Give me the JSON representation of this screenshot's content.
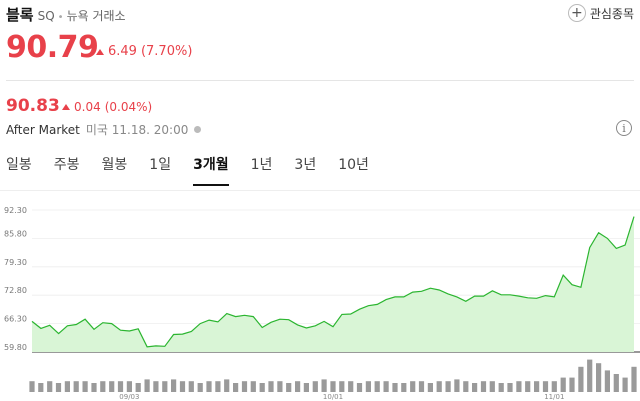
{
  "header": {
    "name": "블록",
    "ticker": "SQ",
    "separator": "•",
    "exchange": "뉴욕 거래소",
    "watch_label": "관심종목"
  },
  "quote": {
    "price": "90.79",
    "change": "6.49",
    "change_pct": "(7.70%)"
  },
  "after_market": {
    "price": "90.83",
    "change": "0.04",
    "change_pct": "(0.04%)",
    "label": "After Market",
    "time": "미국 11.18. 20:00"
  },
  "tabs": [
    {
      "label": "일봉",
      "active": false
    },
    {
      "label": "주봉",
      "active": false
    },
    {
      "label": "월봉",
      "active": false
    },
    {
      "label": "1일",
      "active": false
    },
    {
      "label": "3개월",
      "active": true
    },
    {
      "label": "1년",
      "active": false
    },
    {
      "label": "3년",
      "active": false
    },
    {
      "label": "10년",
      "active": false
    }
  ],
  "colors": {
    "up": "#e8414a",
    "line": "#2bb530",
    "area": "#d9f5d6",
    "volume": "#9a9a9a"
  },
  "chart_data": {
    "type": "area",
    "yticks": [
      "92.30",
      "85.80",
      "79.30",
      "72.80",
      "66.30",
      "59.80"
    ],
    "ylim": [
      59.8,
      92.3
    ],
    "xticks": [
      {
        "label": "09/03",
        "index": 11
      },
      {
        "label": "10/01",
        "index": 34
      },
      {
        "label": "11/01",
        "index": 59
      }
    ],
    "values": [
      66.8,
      65.2,
      65.9,
      64.0,
      65.8,
      66.1,
      67.3,
      65.0,
      66.5,
      66.3,
      64.8,
      64.6,
      65.1,
      61.0,
      61.2,
      61.1,
      63.8,
      63.9,
      64.5,
      66.3,
      67.1,
      66.7,
      68.6,
      67.9,
      68.2,
      67.9,
      65.4,
      66.6,
      67.3,
      67.2,
      66.0,
      65.3,
      65.8,
      66.8,
      65.6,
      68.4,
      68.5,
      69.6,
      70.4,
      70.7,
      71.8,
      72.4,
      72.4,
      73.5,
      73.7,
      74.4,
      74.0,
      73.1,
      72.4,
      71.4,
      72.6,
      72.6,
      73.8,
      72.9,
      72.9,
      72.6,
      72.2,
      72.1,
      72.7,
      72.4,
      77.4,
      75.2,
      74.6,
      83.7,
      87.1,
      85.8,
      83.5,
      84.3,
      90.8
    ],
    "volume": [
      3,
      2.5,
      3,
      2.5,
      3,
      3,
      3,
      2.5,
      3,
      3,
      3,
      3,
      2.5,
      3.5,
      3,
      3,
      3.5,
      3,
      3,
      2.5,
      3,
      3,
      3.5,
      2.5,
      3,
      3,
      2.5,
      3,
      3,
      2.5,
      3,
      2.5,
      3,
      3.5,
      3,
      3,
      3,
      2.5,
      3,
      3,
      3,
      2.5,
      2.5,
      3,
      3,
      2.5,
      3,
      3,
      3.5,
      3,
      2.5,
      3,
      3,
      2.5,
      2.5,
      3,
      3,
      3,
      3,
      3,
      4,
      4,
      7,
      9,
      8,
      6,
      5,
      4,
      7
    ]
  }
}
